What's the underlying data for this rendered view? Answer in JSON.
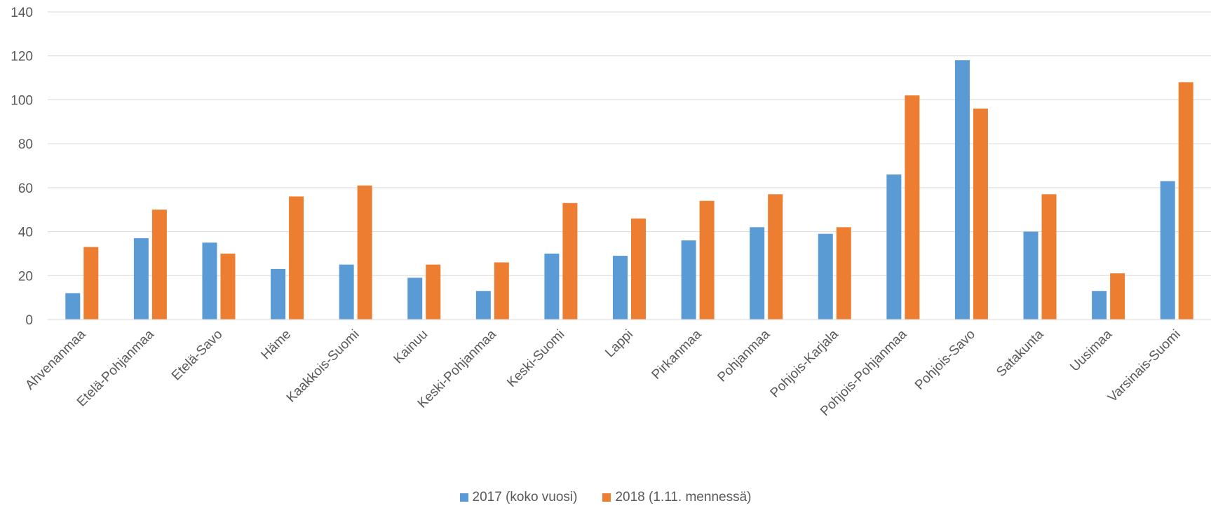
{
  "chart_data": {
    "type": "bar",
    "title": "",
    "xlabel": "",
    "ylabel": "",
    "ylim": [
      0,
      140
    ],
    "yticks": [
      0,
      20,
      40,
      60,
      80,
      100,
      120,
      140
    ],
    "grid": true,
    "legend_position": "bottom",
    "categories": [
      "Ahvenanmaa",
      "Etelä-Pohjanmaa",
      "Etelä-Savo",
      "Häme",
      "Kaakkois-Suomi",
      "Kainuu",
      "Keski-Pohjanmaa",
      "Keski-Suomi",
      "Lappi",
      "Pirkanmaa",
      "Pohjanmaa",
      "Pohjois-Karjala",
      "Pohjois-Pohjanmaa",
      "Pohjois-Savo",
      "Satakunta",
      "Uusimaa",
      "Varsinais-Suomi"
    ],
    "series": [
      {
        "name": "2017 (koko vuosi)",
        "color": "#5B9BD5",
        "values": [
          12,
          37,
          35,
          23,
          25,
          19,
          13,
          30,
          29,
          36,
          42,
          39,
          66,
          118,
          40,
          13,
          63
        ]
      },
      {
        "name": "2018 (1.11. mennessä)",
        "color": "#ED7D31",
        "values": [
          33,
          50,
          30,
          56,
          61,
          25,
          26,
          53,
          46,
          54,
          57,
          42,
          102,
          96,
          57,
          21,
          108
        ]
      }
    ]
  }
}
